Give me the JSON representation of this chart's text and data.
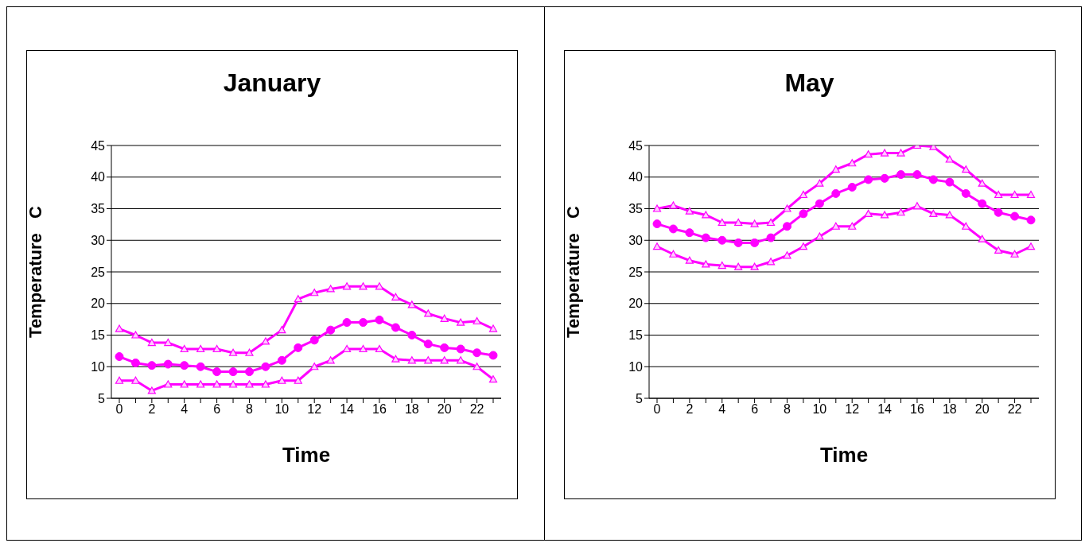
{
  "chart_data": [
    {
      "type": "line",
      "title": "January",
      "xlabel": "Time",
      "ylabel": "Temperature   C",
      "categories": [
        "0",
        null,
        "2",
        null,
        "4",
        null,
        "6",
        null,
        "8",
        null,
        "10",
        null,
        "12",
        null,
        "14",
        null,
        "16",
        null,
        "18",
        null,
        "20",
        null,
        "22",
        null
      ],
      "series": [
        {
          "color": "#ff00ff",
          "marker": "triangle",
          "values": [
            16,
            15,
            13.8,
            13.8,
            12.8,
            12.8,
            12.8,
            12.2,
            12.2,
            14,
            15.8,
            20.7,
            21.7,
            22.3,
            22.7,
            22.7,
            22.7,
            21,
            19.8,
            18.4,
            17.6,
            17,
            17.2,
            16
          ]
        },
        {
          "color": "#ff00ff",
          "marker": "circle",
          "values": [
            11.6,
            10.6,
            10.2,
            10.4,
            10.2,
            10,
            9.2,
            9.2,
            9.2,
            10,
            11,
            13,
            14.2,
            15.8,
            17,
            17,
            17.4,
            16.2,
            15,
            13.6,
            13,
            12.8,
            12.2,
            11.8
          ]
        },
        {
          "color": "#ff00ff",
          "marker": "triangle",
          "values": [
            7.8,
            7.8,
            6.2,
            7.2,
            7.2,
            7.2,
            7.2,
            7.2,
            7.2,
            7.2,
            7.8,
            7.8,
            10,
            11,
            12.8,
            12.8,
            12.8,
            11.2,
            11,
            11,
            11,
            11,
            10,
            8
          ]
        }
      ],
      "ylim": [
        5,
        45
      ],
      "yticks": [
        5,
        10,
        15,
        20,
        25,
        30,
        35,
        40,
        45
      ],
      "grid": "y",
      "legend": false,
      "line_style": "solid"
    },
    {
      "type": "line",
      "title": "May",
      "xlabel": "Time",
      "ylabel": "Temperature   C",
      "categories": [
        "0",
        null,
        "2",
        null,
        "4",
        null,
        "6",
        null,
        "8",
        null,
        "10",
        null,
        "12",
        null,
        "14",
        null,
        "16",
        null,
        "18",
        null,
        "20",
        null,
        "22",
        null
      ],
      "series": [
        {
          "color": "#ff00ff",
          "marker": "triangle",
          "values": [
            35,
            35.5,
            34.6,
            34,
            32.8,
            32.8,
            32.6,
            32.8,
            35,
            37.2,
            39,
            41.2,
            42.2,
            43.6,
            43.8,
            43.8,
            45,
            44.8,
            42.8,
            41.2,
            39,
            37.2,
            37.2,
            37.2
          ]
        },
        {
          "color": "#ff00ff",
          "marker": "circle",
          "values": [
            32.6,
            31.8,
            31.2,
            30.4,
            30,
            29.6,
            29.6,
            30.4,
            32.2,
            34.2,
            35.8,
            37.4,
            38.4,
            39.6,
            39.8,
            40.4,
            40.4,
            39.6,
            39.2,
            37.4,
            35.8,
            34.4,
            33.8,
            33.2
          ]
        },
        {
          "color": "#ff00ff",
          "marker": "triangle",
          "values": [
            29,
            27.8,
            26.8,
            26.2,
            26,
            25.8,
            25.8,
            26.6,
            27.6,
            29,
            30.6,
            32.2,
            32.2,
            34.2,
            34,
            34.4,
            35.4,
            34.2,
            34,
            32.2,
            30.2,
            28.4,
            27.8,
            29
          ]
        }
      ],
      "ylim": [
        5,
        45
      ],
      "yticks": [
        5,
        10,
        15,
        20,
        25,
        30,
        35,
        40,
        45
      ],
      "grid": "y",
      "legend": false,
      "line_style": "solid"
    }
  ]
}
